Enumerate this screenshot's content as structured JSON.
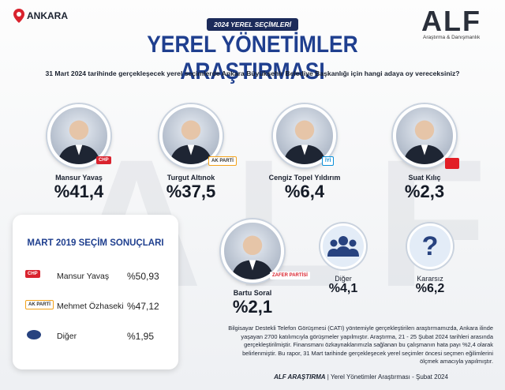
{
  "location": "ANKARA",
  "badge": "2024 YEREL SEÇİMLERİ",
  "title": "YEREL YÖNETİMLER ARAŞTIRMASI",
  "logo": {
    "name": "ALF",
    "tagline": "Araştırma & Danışmanlık"
  },
  "question": "31 Mart 2024 tarihinde gerçekleşecek yerel seçimlerde Ankara Büyükşehir Belediye Başkanlığı için hangi adaya oy vereceksiniz?",
  "candidates": [
    {
      "name": "Mansur Yavaş",
      "party": "CHP",
      "result": "%41,4"
    },
    {
      "name": "Turgut Altınok",
      "party": "AK PARTİ",
      "result": "%37,5"
    },
    {
      "name": "Cengiz Topel Yıldırım",
      "party": "İYİ",
      "result": "%6,4"
    },
    {
      "name": "Suat Kılıç",
      "result": "%2,3"
    },
    {
      "name": "Bartu Soral",
      "party": "ZAFER PARTİSİ",
      "result": "%2,1"
    }
  ],
  "others": [
    {
      "name": "Diğer",
      "result": "%4,1"
    },
    {
      "name": "Kararsız",
      "result": "%6,2"
    }
  ],
  "past_results": {
    "title": "MART 2019 SEÇİM SONUÇLARI",
    "rows": [
      {
        "party": "CHP",
        "name": "Mansur Yavaş",
        "result": "%50,93"
      },
      {
        "party": "AK PARTİ",
        "name": "Mehmet Özhaseki",
        "result": "%47,12"
      },
      {
        "name": "Diğer",
        "result": "%1,95"
      }
    ]
  },
  "methodology": "Bilgisayar Destekli Telefon Görüşmesi (CATI) yöntemiyle gerçekleştirilen araştırmamızda, Ankara ilinde yaşayan 2700 katılımcıyla görüşmeler yapılmıştır. Araştırma, 21 - 25 Şubat 2024 tarihleri arasında gerçekleştirilmiştir. Finansmanı özkaynaklarımızla sağlanan bu çalışmanın hata payı %2,4 olarak belirlenmiştir. Bu rapor, 31 Mart tarihinde gerçekleşecek yerel seçimler öncesi seçmen eğilimlerini ölçmek amacıyla yapılmıştır.",
  "footer": {
    "brand": "ALF ARAŞTIRMA",
    "text": "Yerel Yönetimler Araştırması - Şubat 2024"
  }
}
